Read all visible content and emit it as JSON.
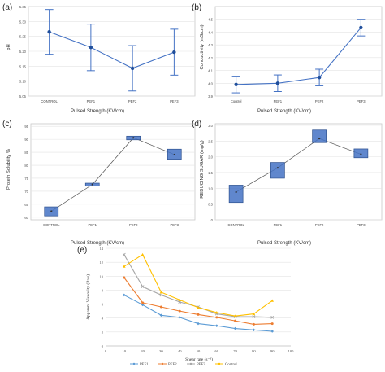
{
  "chart_data": [
    {
      "panel": "(a)",
      "type": "line",
      "categories": [
        "CONTROL",
        "PEF1",
        "PEF2",
        "PEF3"
      ],
      "values": [
        5.265,
        5.213,
        5.143,
        5.197
      ],
      "error": [
        0.075,
        0.078,
        0.076,
        0.077
      ],
      "xlabel": "Pulsed Strength (KV/cm)",
      "ylabel": "pH",
      "ylim": [
        5.05,
        5.35
      ],
      "yticks": [
        "5.05",
        "5.10",
        "5.15",
        "5.20",
        "5.25",
        "5.30",
        "5.35"
      ],
      "grid": true,
      "color": "#4472c4"
    },
    {
      "panel": "(b)",
      "type": "line",
      "categories": [
        "Control",
        "PEF1",
        "PEF2",
        "PEF3"
      ],
      "values": [
        3.99,
        4.0,
        4.045,
        4.435
      ],
      "error": [
        0.065,
        0.065,
        0.065,
        0.065
      ],
      "xlabel": "Pulsed Strength (KV/cm)",
      "ylabel": "Conductivity (mS/cm)",
      "ylim": [
        3.9,
        4.6
      ],
      "yticks": [
        "3.9",
        "4.0",
        "4.1",
        "4.2",
        "4.3",
        "4.4",
        "4.5"
      ],
      "grid": true,
      "color": "#4472c4"
    },
    {
      "panel": "(c)",
      "type": "box",
      "categories": [
        "CONTROL",
        "PEF1",
        "PEF2",
        "PEF3"
      ],
      "boxes": [
        {
          "low": 60.5,
          "high": 64.0,
          "mean": 62.3
        },
        {
          "low": 72.0,
          "high": 73.1,
          "mean": 72.6
        },
        {
          "low": 89.8,
          "high": 91.2,
          "mean": 90.6
        },
        {
          "low": 82.3,
          "high": 86.2,
          "mean": 84.1
        }
      ],
      "xlabel": "Pulsed Strength (KV/cm)",
      "ylabel": "Protein Solubility %",
      "ylim": [
        59,
        96
      ],
      "yticks": [
        "60",
        "65",
        "70",
        "75",
        "80",
        "85",
        "90",
        "95"
      ],
      "grid": true,
      "color": "#4472c4"
    },
    {
      "panel": "(d)",
      "type": "box",
      "categories": [
        "CONTROL",
        "PEF1",
        "PEF2",
        "PEF3"
      ],
      "boxes": [
        {
          "low": 0.55,
          "high": 1.1,
          "mean": 0.88
        },
        {
          "low": 1.32,
          "high": 1.82,
          "mean": 1.65
        },
        {
          "low": 2.45,
          "high": 2.85,
          "mean": 2.58
        },
        {
          "low": 1.97,
          "high": 2.25,
          "mean": 2.08
        }
      ],
      "xlabel": "Pulsed Strength (KV/cm)",
      "ylabel": "REDUCING SUGAR (mg/g)",
      "ylim": [
        0,
        3.05
      ],
      "yticks": [
        "0",
        "0.5",
        "1.0",
        "1.5",
        "2.0",
        "2.5",
        "3.0"
      ],
      "grid": true,
      "color": "#4472c4"
    },
    {
      "panel": "(e)",
      "type": "line",
      "x": [
        10,
        20,
        30,
        40,
        50,
        60,
        70,
        80,
        90
      ],
      "series": [
        {
          "name": "PEF1",
          "color": "#5b9bd5",
          "marker": "diamond",
          "values": [
            7.3,
            5.9,
            4.4,
            4.1,
            3.2,
            2.9,
            2.5,
            2.3,
            2.1
          ]
        },
        {
          "name": "PEF2",
          "color": "#ed7d31",
          "marker": "circle",
          "values": [
            9.8,
            6.2,
            5.6,
            5.0,
            4.5,
            4.1,
            3.6,
            3.1,
            3.2
          ]
        },
        {
          "name": "PEF3",
          "color": "#a5a5a5",
          "marker": "cross",
          "values": [
            13.1,
            8.5,
            7.3,
            6.3,
            5.6,
            4.6,
            4.2,
            4.2,
            4.1
          ]
        },
        {
          "name": "Control",
          "color": "#ffc000",
          "marker": "triangle",
          "values": [
            11.4,
            13.1,
            7.7,
            6.6,
            5.5,
            4.8,
            4.3,
            4.6,
            6.5
          ]
        }
      ],
      "xlabel": "Shear rate (s⁻¹)",
      "ylabel": "Apparent Viscosity (Pa.s)",
      "xlim": [
        0,
        100
      ],
      "ylim": [
        0,
        14
      ],
      "xticks": [
        "0",
        "10",
        "20",
        "30",
        "40",
        "50",
        "60",
        "70",
        "80",
        "90",
        "100"
      ],
      "yticks": [
        "0",
        "2",
        "4",
        "6",
        "8",
        "10",
        "12",
        "14"
      ],
      "legend": "bottom",
      "grid": true
    }
  ]
}
